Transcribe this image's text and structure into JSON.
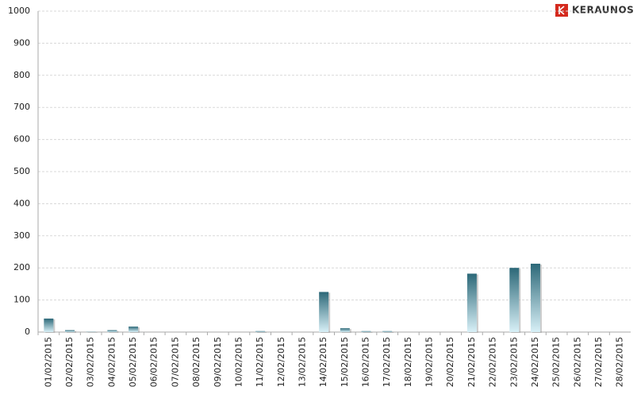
{
  "brand": "KERAUNOS",
  "chart_data": {
    "type": "bar",
    "categories": [
      "01/02/2015",
      "02/02/2015",
      "03/02/2015",
      "04/02/2015",
      "05/02/2015",
      "06/02/2015",
      "07/02/2015",
      "08/02/2015",
      "09/02/2015",
      "10/02/2015",
      "11/02/2015",
      "12/02/2015",
      "13/02/2015",
      "14/02/2015",
      "15/02/2015",
      "16/02/2015",
      "17/02/2015",
      "18/02/2015",
      "19/02/2015",
      "20/02/2015",
      "21/02/2015",
      "22/02/2015",
      "23/02/2015",
      "24/02/2015",
      "25/02/2015",
      "26/02/2015",
      "27/02/2015",
      "28/02/2015"
    ],
    "values": [
      42,
      6,
      1,
      6,
      17,
      0,
      0,
      0,
      0,
      0,
      3,
      0,
      0,
      125,
      12,
      3,
      3,
      0,
      0,
      0,
      182,
      0,
      200,
      213,
      0,
      0,
      0,
      0
    ],
    "color": "#2c6878",
    "ylim": [
      0,
      1000
    ],
    "yticks": [
      0,
      100,
      200,
      300,
      400,
      500,
      600,
      700,
      800,
      900,
      1000
    ],
    "grid": true
  }
}
